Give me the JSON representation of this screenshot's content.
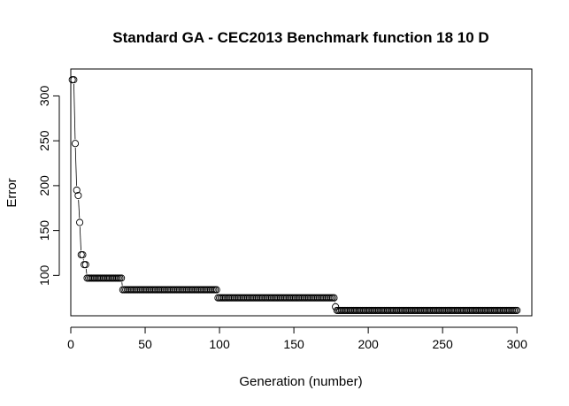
{
  "chart_data": {
    "type": "line",
    "title": "Standard GA - CEC2013 Benchmark function  18 10 D",
    "xlabel": "Generation (number)",
    "ylabel": "Error",
    "xlim": [
      0,
      310
    ],
    "ylim": [
      55,
      330
    ],
    "x_ticks": [
      0,
      50,
      100,
      150,
      200,
      250,
      300
    ],
    "y_ticks": [
      100,
      150,
      200,
      250,
      300
    ],
    "marker": "open-circle",
    "series": [
      {
        "segments": [
          {
            "from": 1,
            "to": 1,
            "y": 318
          },
          {
            "from": 2,
            "to": 2,
            "y": 318
          },
          {
            "from": 3,
            "to": 3,
            "y": 247
          },
          {
            "from": 4,
            "to": 4,
            "y": 195
          },
          {
            "from": 5,
            "to": 5,
            "y": 189
          },
          {
            "from": 6,
            "to": 6,
            "y": 159
          },
          {
            "from": 7,
            "to": 7,
            "y": 123
          },
          {
            "from": 8,
            "to": 8,
            "y": 123
          },
          {
            "from": 9,
            "to": 9,
            "y": 112
          },
          {
            "from": 10,
            "to": 10,
            "y": 112
          },
          {
            "from": 11,
            "to": 34,
            "y": 97
          },
          {
            "from": 35,
            "to": 98,
            "y": 84
          },
          {
            "from": 99,
            "to": 177,
            "y": 75
          },
          {
            "from": 178,
            "to": 178,
            "y": 65
          },
          {
            "from": 179,
            "to": 300,
            "y": 61
          }
        ]
      }
    ]
  }
}
